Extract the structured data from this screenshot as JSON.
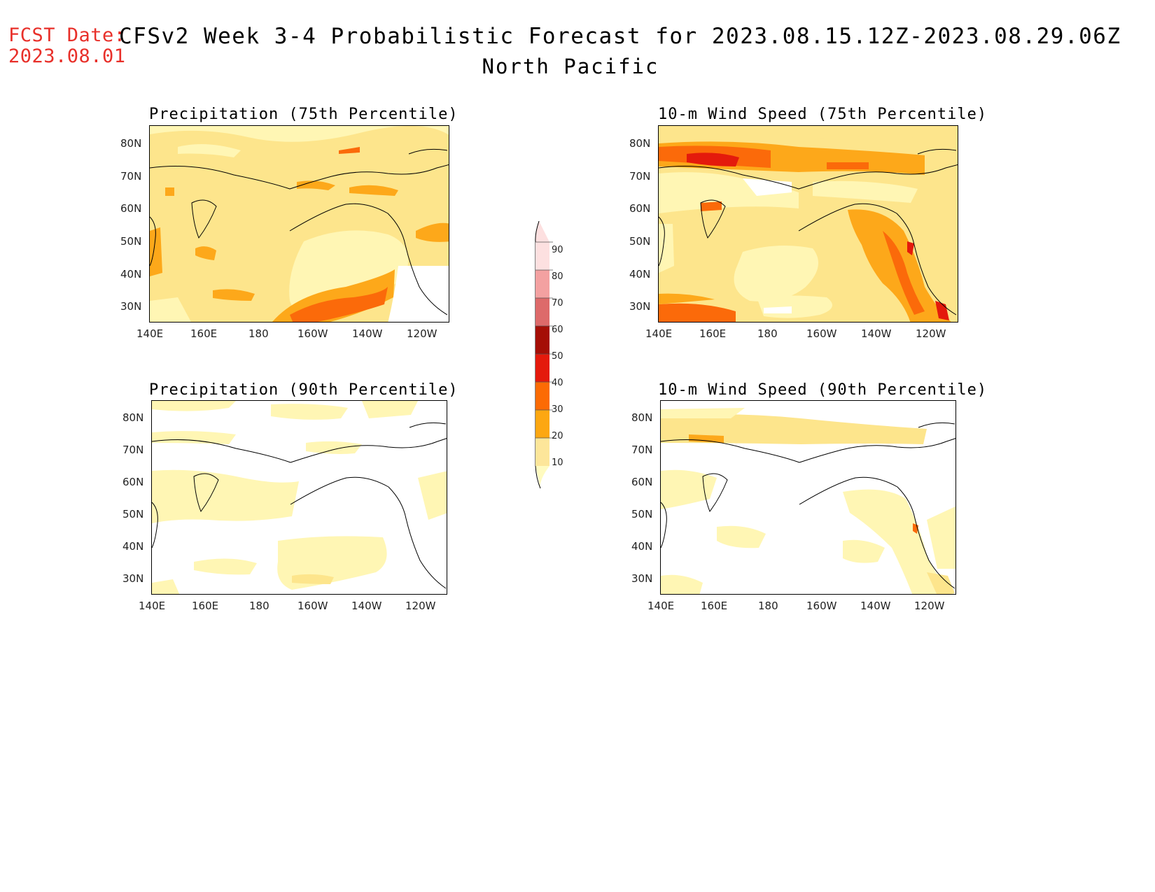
{
  "header": {
    "fcst_label": "FCST Date:",
    "fcst_date": "2023.08.01",
    "title": "CFSv2 Week 3-4 Probabilistic Forecast for 2023.08.15.12Z-2023.08.29.06Z",
    "region": "North Pacific"
  },
  "panels": [
    {
      "title": "Precipitation (75th Percentile)"
    },
    {
      "title": "10-m Wind Speed (75th Percentile)"
    },
    {
      "title": "Precipitation (90th Percentile)"
    },
    {
      "title": "10-m Wind Speed (90th Percentile)"
    }
  ],
  "axes": {
    "lat_labels": [
      "80N",
      "70N",
      "60N",
      "50N",
      "40N",
      "30N"
    ],
    "lon_labels": [
      "140E",
      "160E",
      "180",
      "160W",
      "140W",
      "120W"
    ]
  },
  "legend": {
    "levels": [
      "10",
      "20",
      "30",
      "40",
      "50",
      "60",
      "70",
      "80",
      "90"
    ],
    "colors": [
      "#fffbc0",
      "#fde69a",
      "#fda712",
      "#fc6b04",
      "#e41a0c",
      "#a50f06",
      "#dd6a6a",
      "#f3a1a1",
      "#fde0e0"
    ]
  },
  "colors": {
    "fcst_text": "#e8302a",
    "level_10_20": "#fff6b4",
    "level_20_30": "#fde58c",
    "level_30_40": "#fda81a",
    "level_40_50": "#fb6a0a",
    "level_50_60": "#e41a0c"
  }
}
